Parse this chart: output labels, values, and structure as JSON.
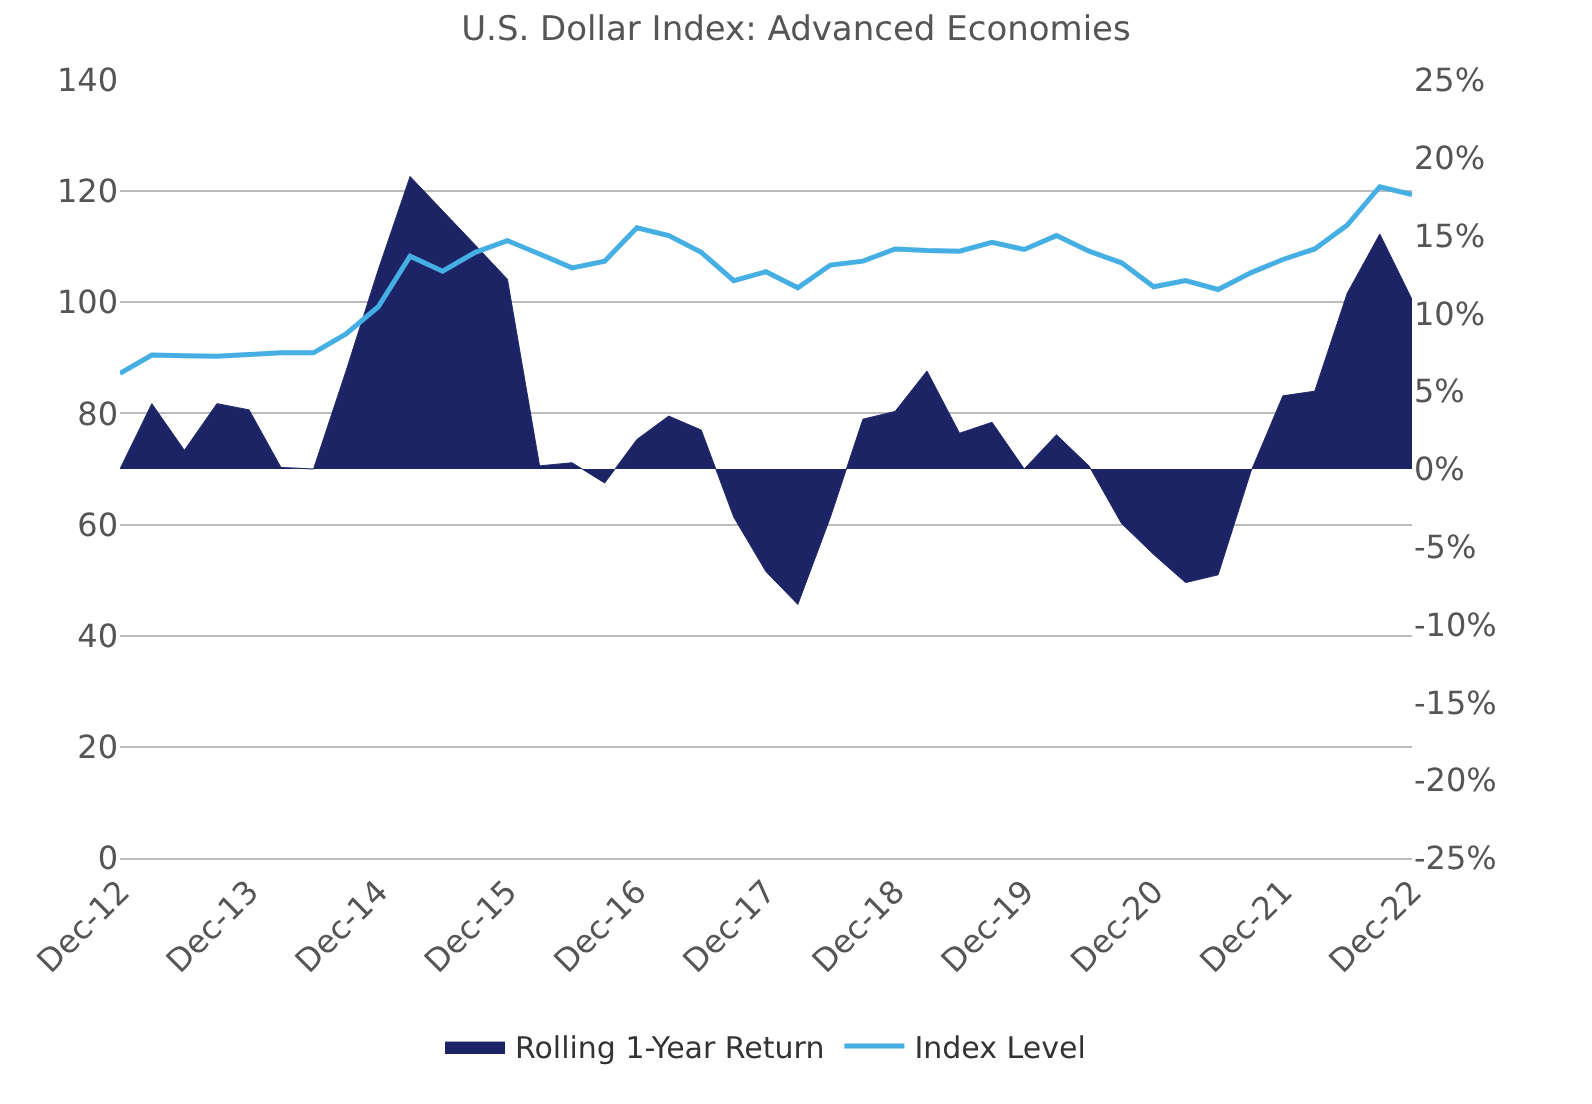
{
  "chart_data": {
    "type": "line",
    "title": "U.S. Dollar Index: Advanced Economies",
    "x": [
      "2012-12",
      "2013-03",
      "2013-06",
      "2013-09",
      "2013-12",
      "2014-03",
      "2014-06",
      "2014-09",
      "2014-12",
      "2015-03",
      "2015-06",
      "2015-09",
      "2015-12",
      "2016-03",
      "2016-06",
      "2016-09",
      "2016-12",
      "2017-03",
      "2017-06",
      "2017-09",
      "2017-12",
      "2018-03",
      "2018-06",
      "2018-09",
      "2018-12",
      "2019-03",
      "2019-06",
      "2019-09",
      "2019-12",
      "2020-03",
      "2020-06",
      "2020-09",
      "2020-12",
      "2021-03",
      "2021-06",
      "2021-09",
      "2021-12",
      "2022-03",
      "2022-06",
      "2022-09",
      "2022-12"
    ],
    "series": [
      {
        "name": "Rolling 1-Year Return",
        "type": "area",
        "axis": "y2",
        "color": "#1c2466",
        "values": [
          0,
          4.2,
          1.2,
          4.2,
          3.8,
          0.1,
          0,
          6.3,
          12.8,
          18.8,
          16.6,
          14.4,
          12.2,
          0.2,
          0.4,
          -0.9,
          1.9,
          3.4,
          2.5,
          -3.1,
          -6.6,
          -8.7,
          -3.1,
          3.2,
          3.7,
          6.3,
          2.3,
          3.0,
          0,
          2.2,
          0.2,
          -3.5,
          -5.5,
          -7.3,
          -6.8,
          -0.2,
          4.7,
          5.0,
          11.3,
          15.1,
          10.9
        ]
      },
      {
        "name": "Index Level",
        "color": "#45aee3",
        "values": [
          87.2,
          90.5,
          90.4,
          90.3,
          90.6,
          90.9,
          90.9,
          94.3,
          99.2,
          108.3,
          105.6,
          109,
          111.1,
          108.7,
          106.2,
          107.4,
          113.4,
          112,
          109,
          103.9,
          105.5,
          102.6,
          106.7,
          107.4,
          109.6,
          109.3,
          109.2,
          110.8,
          109.5,
          112,
          109.2,
          107.1,
          102.8,
          103.9,
          102.3,
          105.3,
          107.7,
          109.6,
          113.9,
          120.8,
          119.4
        ]
      }
    ],
    "xlim": [
      "2012-12",
      "2022-12"
    ],
    "xticks": [
      {
        "value": "2012-12",
        "label": "Dec-12"
      },
      {
        "value": "2013-12",
        "label": "Dec-13"
      },
      {
        "value": "2014-12",
        "label": "Dec-14"
      },
      {
        "value": "2015-12",
        "label": "Dec-15"
      },
      {
        "value": "2016-12",
        "label": "Dec-16"
      },
      {
        "value": "2017-12",
        "label": "Dec-17"
      },
      {
        "value": "2018-12",
        "label": "Dec-18"
      },
      {
        "value": "2019-12",
        "label": "Dec-19"
      },
      {
        "value": "2020-12",
        "label": "Dec-20"
      },
      {
        "value": "2021-12",
        "label": "Dec-21"
      },
      {
        "value": "2022-12",
        "label": "Dec-22"
      }
    ],
    "ylim": [
      0,
      140
    ],
    "yticks": [
      0,
      20,
      40,
      60,
      80,
      100,
      120,
      140
    ],
    "y2lim": [
      -25,
      25
    ],
    "y2ticks": [
      {
        "value": -25,
        "label": "-25%"
      },
      {
        "value": -20,
        "label": "-20%"
      },
      {
        "value": -15,
        "label": "-15%"
      },
      {
        "value": -10,
        "label": "-10%"
      },
      {
        "value": -5,
        "label": "-5%"
      },
      {
        "value": 0,
        "label": "0%"
      },
      {
        "value": 5,
        "label": "5%"
      },
      {
        "value": 10,
        "label": "10%"
      },
      {
        "value": 15,
        "label": "15%"
      },
      {
        "value": 20,
        "label": "20%"
      },
      {
        "value": 25,
        "label": "25%"
      }
    ],
    "grid": "y",
    "legend": "bottom",
    "marker": "none",
    "line_style": "solid"
  }
}
